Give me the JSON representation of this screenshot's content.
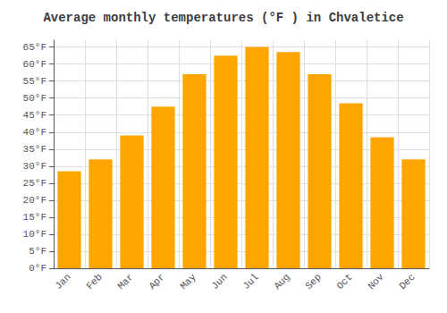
{
  "chart_data": {
    "type": "bar",
    "title": "Average monthly temperatures (°F ) in Chvaletice",
    "categories": [
      "Jan",
      "Feb",
      "Mar",
      "Apr",
      "May",
      "Jun",
      "Jul",
      "Aug",
      "Sep",
      "Oct",
      "Nov",
      "Dec"
    ],
    "values": [
      28.5,
      32.0,
      39.0,
      47.5,
      57.0,
      62.5,
      65.0,
      63.5,
      57.0,
      48.5,
      38.5,
      32.0
    ],
    "color": "#FFA500",
    "ylim": [
      0,
      67
    ],
    "yticks": [
      {
        "value": 0,
        "label": "0°F"
      },
      {
        "value": 5,
        "label": "5°F"
      },
      {
        "value": 10,
        "label": "10°F"
      },
      {
        "value": 15,
        "label": "15°F"
      },
      {
        "value": 20,
        "label": "20°F"
      },
      {
        "value": 25,
        "label": "25°F"
      },
      {
        "value": 30,
        "label": "30°F"
      },
      {
        "value": 35,
        "label": "35°F"
      },
      {
        "value": 40,
        "label": "40°F"
      },
      {
        "value": 45,
        "label": "45°F"
      },
      {
        "value": 50,
        "label": "50°F"
      },
      {
        "value": 55,
        "label": "55°F"
      },
      {
        "value": 60,
        "label": "60°F"
      },
      {
        "value": 65,
        "label": "65°F"
      }
    ],
    "grid": true
  }
}
